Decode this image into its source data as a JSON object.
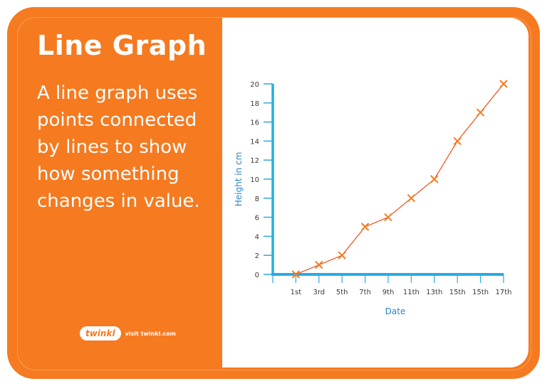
{
  "card": {
    "title": "Line Graph",
    "description": "A line graph uses points connected by lines to show how something changes in value.",
    "brand": {
      "logo_text": "twinkl",
      "visit_text": "visit twinkl.com"
    },
    "colors": {
      "frame": "#f57a20",
      "axis": "#29abe2",
      "line": "#f15a29",
      "marker": "#f57a20",
      "axis_title": "#2a86c8"
    }
  },
  "chart_data": {
    "type": "line",
    "title": "",
    "xlabel": "Date",
    "ylabel": "Height in cm",
    "categories": [
      "1st",
      "3rd",
      "5th",
      "7th",
      "9th",
      "11th",
      "13th",
      "15th",
      "15th",
      "17th"
    ],
    "series": [
      {
        "name": "Height",
        "values": [
          0,
          1,
          2,
          5,
          6,
          8,
          10,
          14,
          17,
          20
        ],
        "marker": "x"
      }
    ],
    "ylim": [
      0,
      20
    ],
    "yticks": [
      0,
      2,
      4,
      6,
      8,
      10,
      12,
      14,
      16,
      18,
      20
    ],
    "grid": false,
    "legend": "none"
  }
}
